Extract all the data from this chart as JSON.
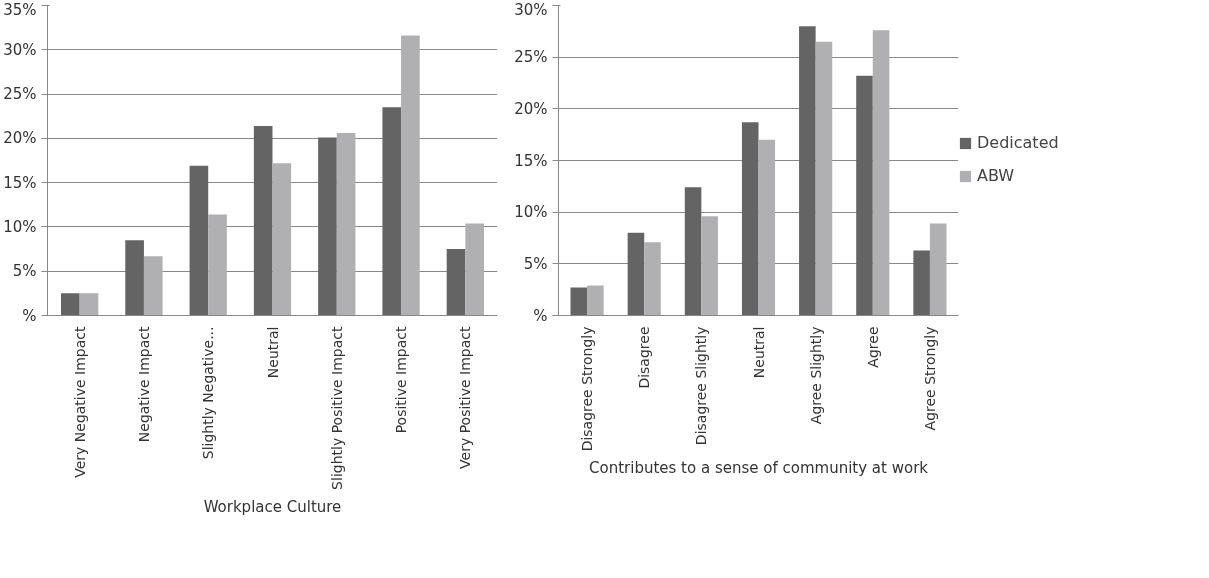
{
  "chart_data": [
    {
      "type": "bar",
      "xlabel": "Workplace Culture",
      "categories": [
        "Very Negative Impact",
        "Negative Impact",
        "Slightly Negative...",
        "Neutral",
        "Slightly Positive Impact",
        "Positive Impact",
        "Very Positive Impact"
      ],
      "series": [
        {
          "color": "#646464",
          "values": [
            2.5,
            8.5,
            16.9,
            21.4,
            20.1,
            23.5,
            7.5
          ]
        },
        {
          "color": "#b0b0b2",
          "values": [
            2.5,
            6.7,
            11.4,
            17.2,
            20.6,
            31.6,
            10.4
          ]
        }
      ],
      "ylim": [
        0,
        35
      ],
      "yticks": [
        {
          "value": 0,
          "label": "%"
        },
        {
          "value": 5,
          "label": "5%"
        },
        {
          "value": 10,
          "label": "10%"
        },
        {
          "value": 15,
          "label": "15%"
        },
        {
          "value": 20,
          "label": "20%"
        },
        {
          "value": 25,
          "label": "25%"
        },
        {
          "value": 30,
          "label": "30%"
        },
        {
          "value": 35,
          "label": "35%"
        }
      ],
      "grid": "y",
      "legend": false
    },
    {
      "type": "bar",
      "xlabel": "Contributes to a sense of community at work",
      "categories": [
        "Disagree Strongly",
        "Disagree",
        "Disagree Slightly",
        "Neutral",
        "Agree Slightly",
        "Agree",
        "Agree Strongly"
      ],
      "series": [
        {
          "name": "Dedicated",
          "color": "#646464",
          "values": [
            2.7,
            8.0,
            12.4,
            18.7,
            28.0,
            23.2,
            6.3
          ]
        },
        {
          "name": "ABW",
          "color": "#b0b0b2",
          "values": [
            2.9,
            7.1,
            9.6,
            17.0,
            26.5,
            27.6,
            8.9
          ]
        }
      ],
      "ylim": [
        0,
        30
      ],
      "yticks": [
        {
          "value": 0,
          "label": "%"
        },
        {
          "value": 5,
          "label": "5%"
        },
        {
          "value": 10,
          "label": "10%"
        },
        {
          "value": 15,
          "label": "15%"
        },
        {
          "value": 20,
          "label": "20%"
        },
        {
          "value": 25,
          "label": "25%"
        },
        {
          "value": 30,
          "label": "30%"
        }
      ],
      "grid": "y",
      "legend": "right"
    }
  ]
}
